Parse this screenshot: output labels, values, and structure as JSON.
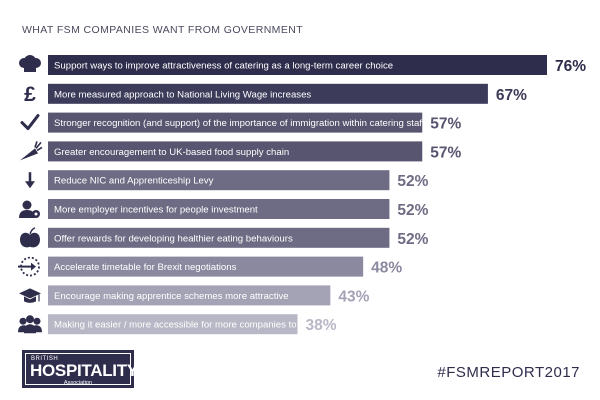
{
  "title": "WHAT FSM COMPANIES WANT FROM GOVERNMENT",
  "hashtag": "#FSMREPORT2017",
  "logo": {
    "line1": "BRITISH",
    "line2": "HOSPITALITY",
    "line3": "Association"
  },
  "chart_data": {
    "type": "bar",
    "orientation": "horizontal",
    "title": "WHAT FSM COMPANIES WANT FROM GOVERNMENT",
    "xlim": [
      0,
      76
    ],
    "categories": [
      "Support ways to improve attractiveness of catering as a long-term career choice",
      "More measured approach to National Living Wage increases",
      "Stronger recognition (and support) of the importance of immigration within catering staff",
      "Greater encouragement to UK-based food supply chain",
      "Reduce NIC and Apprenticeship Levy",
      "More employer incentives for people investment",
      "Offer rewards for developing healthier eating behaviours",
      "Accelerate timetable for Brexit negotiations",
      "Encourage making apprentice schemes more attractive",
      "Making it easier / more accessible for more companies to partake in public sector contracts"
    ],
    "values": [
      76,
      67,
      57,
      57,
      52,
      52,
      52,
      48,
      43,
      38
    ],
    "value_labels": [
      "76%",
      "67%",
      "57%",
      "57%",
      "52%",
      "52%",
      "52%",
      "48%",
      "43%",
      "38%"
    ],
    "bar_colors": [
      "#2f2d4c",
      "#3d3b5a",
      "#57556f",
      "#57556f",
      "#6e6c84",
      "#6e6c84",
      "#6e6c84",
      "#8b89a0",
      "#a4a2b5",
      "#b8b7c6"
    ],
    "label_colors": [
      "#2f2d4c",
      "#3d3b5a",
      "#57556f",
      "#57556f",
      "#6e6c84",
      "#6e6c84",
      "#6e6c84",
      "#8b89a0",
      "#a4a2b5",
      "#b8b7c6"
    ],
    "icons": [
      "chef-hat-icon",
      "pound-icon",
      "checkmark-icon",
      "carrot-icon",
      "down-arrow-icon",
      "person-gear-icon",
      "apple-icon",
      "dotted-arrow-circle-icon",
      "graduation-cap-icon",
      "group-icon"
    ],
    "grid": false,
    "legend": "none"
  }
}
